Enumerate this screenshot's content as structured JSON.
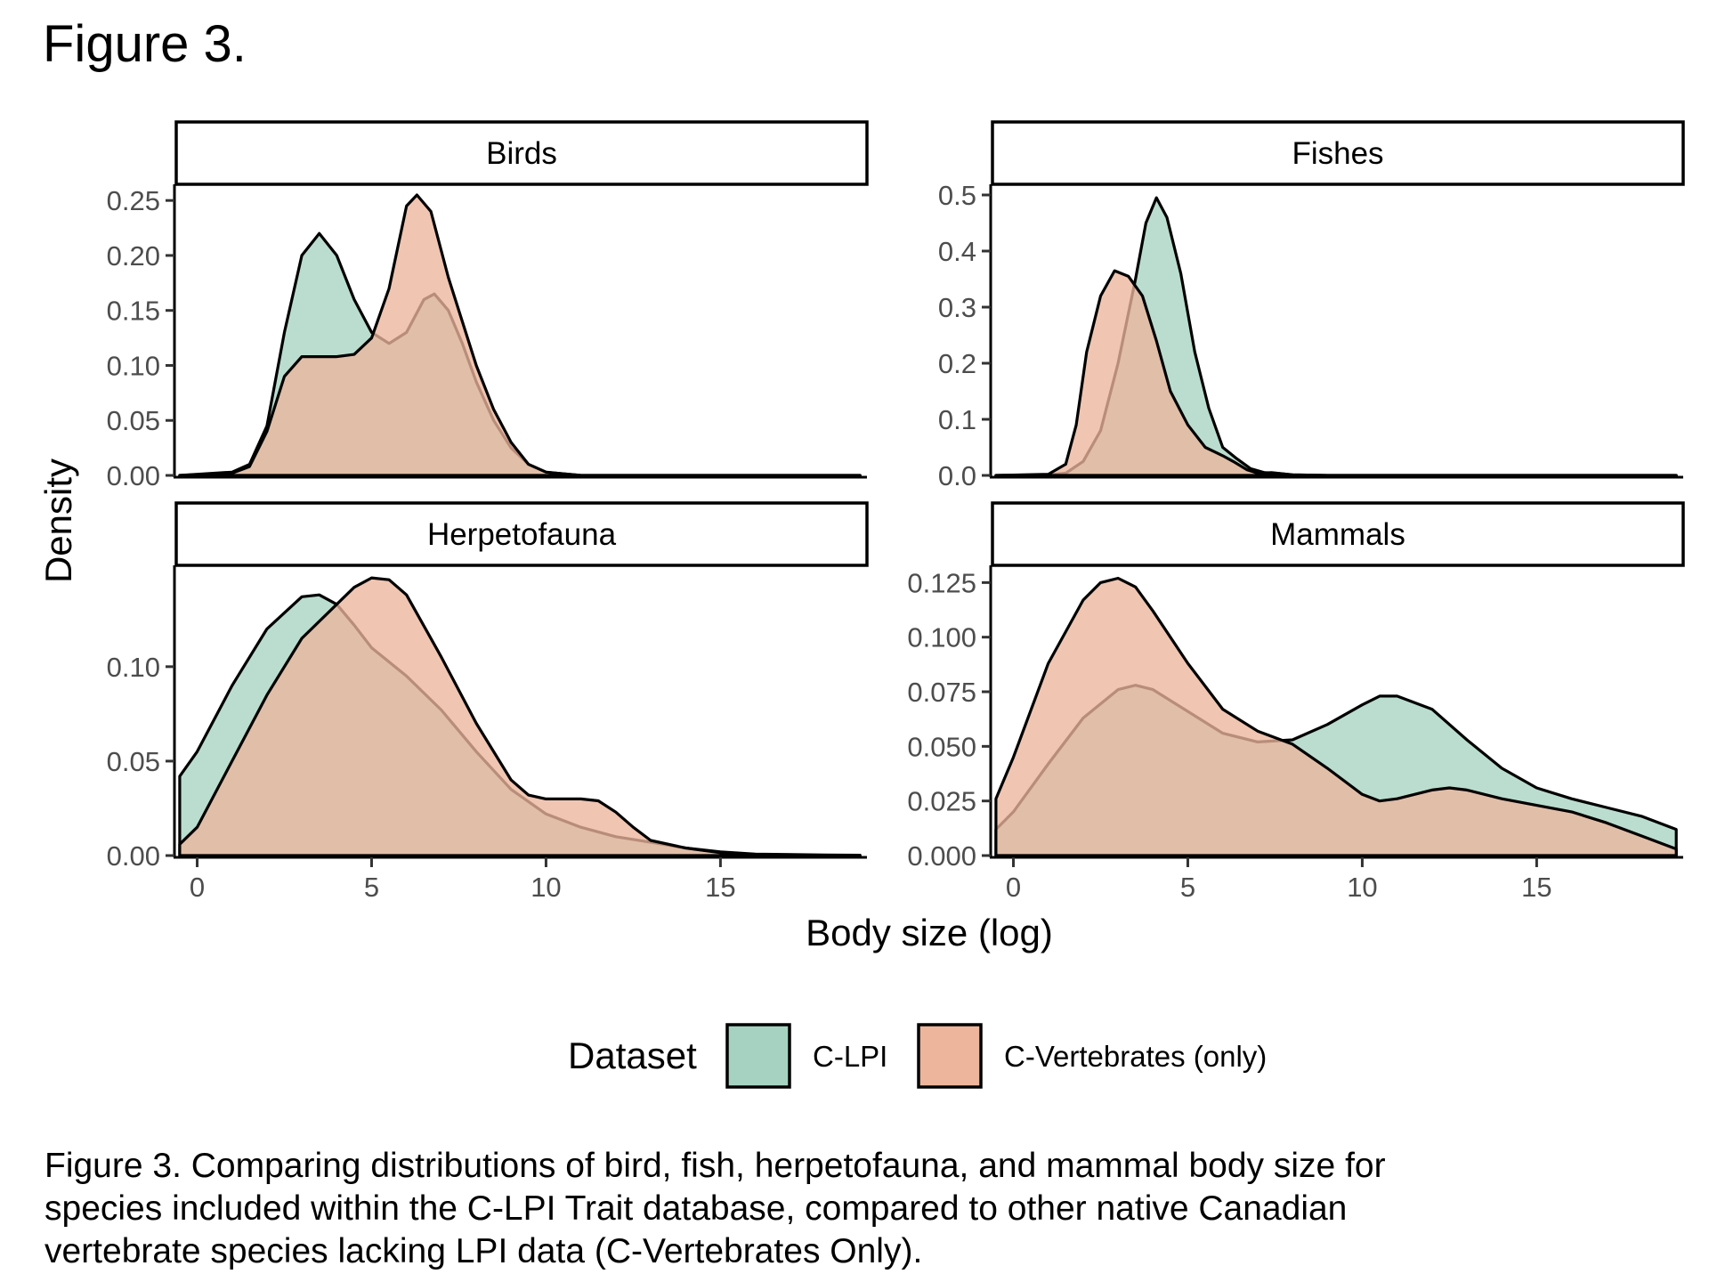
{
  "figure_heading": "Figure 3.",
  "caption": "Figure 3. Comparing distributions of bird, fish, herpetofauna, and mammal body size for species included within the C-LPI Trait database, compared to other native Canadian vertebrate species lacking LPI data (C-Vertebrates Only).",
  "colors": {
    "C-LPI": "#a6d3c1",
    "C-Vertebrates (only)": "#ecb59c"
  },
  "chart_data": {
    "type": "area",
    "subtype": "density-facets",
    "xlabel": "Body size (log)",
    "ylabel": "Density",
    "xlim": [
      -0.6,
      19.2
    ],
    "x_ticks": [
      0,
      5,
      10,
      15
    ],
    "legend": {
      "title": "Dataset",
      "position": "bottom",
      "entries": [
        "C-LPI",
        "C-Vertebrates (only)"
      ]
    },
    "grid": false,
    "facets": [
      {
        "name": "Birds",
        "ylim": [
          0,
          0.255
        ],
        "y_ticks": [
          "0.00",
          "0.05",
          "0.10",
          "0.15",
          "0.20",
          "0.25"
        ],
        "series": [
          {
            "name": "C-LPI",
            "points": [
              [
                -0.5,
                0
              ],
              [
                1,
                0.003
              ],
              [
                1.5,
                0.01
              ],
              [
                2,
                0.045
              ],
              [
                2.5,
                0.13
              ],
              [
                3,
                0.2
              ],
              [
                3.5,
                0.22
              ],
              [
                4,
                0.2
              ],
              [
                4.5,
                0.16
              ],
              [
                5,
                0.13
              ],
              [
                5.5,
                0.12
              ],
              [
                6,
                0.13
              ],
              [
                6.5,
                0.16
              ],
              [
                6.8,
                0.165
              ],
              [
                7.2,
                0.15
              ],
              [
                7.6,
                0.12
              ],
              [
                8,
                0.085
              ],
              [
                8.5,
                0.05
              ],
              [
                9,
                0.025
              ],
              [
                9.5,
                0.01
              ],
              [
                10,
                0.003
              ],
              [
                11,
                0
              ],
              [
                19,
                0
              ]
            ]
          },
          {
            "name": "C-Vertebrates (only)",
            "points": [
              [
                -0.5,
                0
              ],
              [
                1,
                0.002
              ],
              [
                1.5,
                0.008
              ],
              [
                2,
                0.04
              ],
              [
                2.5,
                0.09
              ],
              [
                3,
                0.108
              ],
              [
                3.5,
                0.108
              ],
              [
                4,
                0.108
              ],
              [
                4.5,
                0.11
              ],
              [
                5,
                0.125
              ],
              [
                5.5,
                0.17
              ],
              [
                6,
                0.245
              ],
              [
                6.3,
                0.255
              ],
              [
                6.7,
                0.24
              ],
              [
                7.2,
                0.18
              ],
              [
                7.6,
                0.14
              ],
              [
                8,
                0.1
              ],
              [
                8.5,
                0.06
              ],
              [
                9,
                0.03
              ],
              [
                9.5,
                0.01
              ],
              [
                10,
                0.003
              ],
              [
                11,
                0
              ],
              [
                19,
                0
              ]
            ]
          }
        ]
      },
      {
        "name": "Fishes",
        "ylim": [
          0,
          0.5
        ],
        "y_ticks": [
          "0.0",
          "0.1",
          "0.2",
          "0.3",
          "0.4",
          "0.5"
        ],
        "series": [
          {
            "name": "C-LPI",
            "points": [
              [
                -0.5,
                0
              ],
              [
                1,
                0.001
              ],
              [
                1.5,
                0.004
              ],
              [
                2,
                0.025
              ],
              [
                2.5,
                0.08
              ],
              [
                3,
                0.2
              ],
              [
                3.5,
                0.35
              ],
              [
                3.8,
                0.45
              ],
              [
                4.1,
                0.495
              ],
              [
                4.4,
                0.46
              ],
              [
                4.8,
                0.36
              ],
              [
                5.2,
                0.22
              ],
              [
                5.6,
                0.12
              ],
              [
                6,
                0.05
              ],
              [
                6.4,
                0.03
              ],
              [
                6.8,
                0.012
              ],
              [
                7.2,
                0.005
              ],
              [
                7.5,
                0.004
              ],
              [
                8,
                0.001
              ],
              [
                9,
                0
              ],
              [
                19,
                0
              ]
            ]
          },
          {
            "name": "C-Vertebrates (only)",
            "points": [
              [
                -0.5,
                0
              ],
              [
                1,
                0.002
              ],
              [
                1.5,
                0.02
              ],
              [
                1.8,
                0.09
              ],
              [
                2.1,
                0.22
              ],
              [
                2.5,
                0.32
              ],
              [
                2.9,
                0.365
              ],
              [
                3.3,
                0.355
              ],
              [
                3.7,
                0.32
              ],
              [
                4.1,
                0.24
              ],
              [
                4.5,
                0.15
              ],
              [
                5,
                0.09
              ],
              [
                5.5,
                0.05
              ],
              [
                6,
                0.035
              ],
              [
                6.3,
                0.025
              ],
              [
                6.7,
                0.01
              ],
              [
                7,
                0.004
              ],
              [
                7.4,
                0.005
              ],
              [
                8,
                0.001
              ],
              [
                9,
                0
              ],
              [
                19,
                0
              ]
            ]
          }
        ]
      },
      {
        "name": "Herpetofauna",
        "ylim": [
          0,
          0.148
        ],
        "y_ticks": [
          "0.00",
          "0.05",
          "0.10"
        ],
        "series": [
          {
            "name": "C-LPI",
            "points": [
              [
                -0.5,
                0.042
              ],
              [
                0,
                0.055
              ],
              [
                1,
                0.09
              ],
              [
                2,
                0.12
              ],
              [
                3,
                0.137
              ],
              [
                3.5,
                0.138
              ],
              [
                4,
                0.133
              ],
              [
                4.5,
                0.122
              ],
              [
                5,
                0.11
              ],
              [
                6,
                0.095
              ],
              [
                7,
                0.077
              ],
              [
                8,
                0.055
              ],
              [
                9,
                0.035
              ],
              [
                10,
                0.022
              ],
              [
                11,
                0.015
              ],
              [
                12,
                0.01
              ],
              [
                13,
                0.007
              ],
              [
                14,
                0.004
              ],
              [
                15,
                0.002
              ],
              [
                16,
                0.0008
              ],
              [
                18,
                0.0003
              ],
              [
                19,
                0.0002
              ]
            ]
          },
          {
            "name": "C-Vertebrates (only)",
            "points": [
              [
                -0.5,
                0.006
              ],
              [
                0,
                0.015
              ],
              [
                1,
                0.05
              ],
              [
                2,
                0.085
              ],
              [
                3,
                0.115
              ],
              [
                4,
                0.133
              ],
              [
                4.5,
                0.142
              ],
              [
                5,
                0.147
              ],
              [
                5.5,
                0.146
              ],
              [
                6,
                0.138
              ],
              [
                7,
                0.105
              ],
              [
                8,
                0.07
              ],
              [
                9,
                0.04
              ],
              [
                9.5,
                0.032
              ],
              [
                10,
                0.03
              ],
              [
                10.5,
                0.03
              ],
              [
                11,
                0.03
              ],
              [
                11.5,
                0.029
              ],
              [
                12,
                0.023
              ],
              [
                12.5,
                0.015
              ],
              [
                13,
                0.008
              ],
              [
                14,
                0.004
              ],
              [
                15,
                0.0015
              ],
              [
                16,
                0.0005
              ],
              [
                18,
                0.0001
              ],
              [
                19,
                0
              ]
            ]
          }
        ]
      },
      {
        "name": "Mammals",
        "ylim": [
          0,
          0.128
        ],
        "y_ticks": [
          "0.000",
          "0.025",
          "0.050",
          "0.075",
          "0.100",
          "0.125"
        ],
        "series": [
          {
            "name": "C-LPI",
            "points": [
              [
                -0.5,
                0.012
              ],
              [
                0,
                0.02
              ],
              [
                1,
                0.042
              ],
              [
                2,
                0.063
              ],
              [
                3,
                0.076
              ],
              [
                3.5,
                0.078
              ],
              [
                4,
                0.076
              ],
              [
                5,
                0.066
              ],
              [
                6,
                0.056
              ],
              [
                7,
                0.052
              ],
              [
                8,
                0.053
              ],
              [
                9,
                0.06
              ],
              [
                10,
                0.069
              ],
              [
                10.5,
                0.073
              ],
              [
                11,
                0.073
              ],
              [
                12,
                0.067
              ],
              [
                13,
                0.053
              ],
              [
                14,
                0.04
              ],
              [
                15,
                0.031
              ],
              [
                16,
                0.026
              ],
              [
                17,
                0.022
              ],
              [
                18,
                0.018
              ],
              [
                19,
                0.012
              ]
            ]
          },
          {
            "name": "C-Vertebrates (only)",
            "points": [
              [
                -0.5,
                0.026
              ],
              [
                0,
                0.045
              ],
              [
                1,
                0.088
              ],
              [
                2,
                0.117
              ],
              [
                2.5,
                0.125
              ],
              [
                3,
                0.127
              ],
              [
                3.5,
                0.123
              ],
              [
                4,
                0.112
              ],
              [
                5,
                0.088
              ],
              [
                6,
                0.067
              ],
              [
                7,
                0.057
              ],
              [
                8,
                0.051
              ],
              [
                9,
                0.04
              ],
              [
                10,
                0.028
              ],
              [
                10.5,
                0.025
              ],
              [
                11,
                0.026
              ],
              [
                12,
                0.03
              ],
              [
                12.5,
                0.031
              ],
              [
                13,
                0.03
              ],
              [
                14,
                0.026
              ],
              [
                15,
                0.023
              ],
              [
                16,
                0.02
              ],
              [
                17,
                0.015
              ],
              [
                18,
                0.009
              ],
              [
                19,
                0.003
              ]
            ]
          }
        ]
      }
    ]
  }
}
